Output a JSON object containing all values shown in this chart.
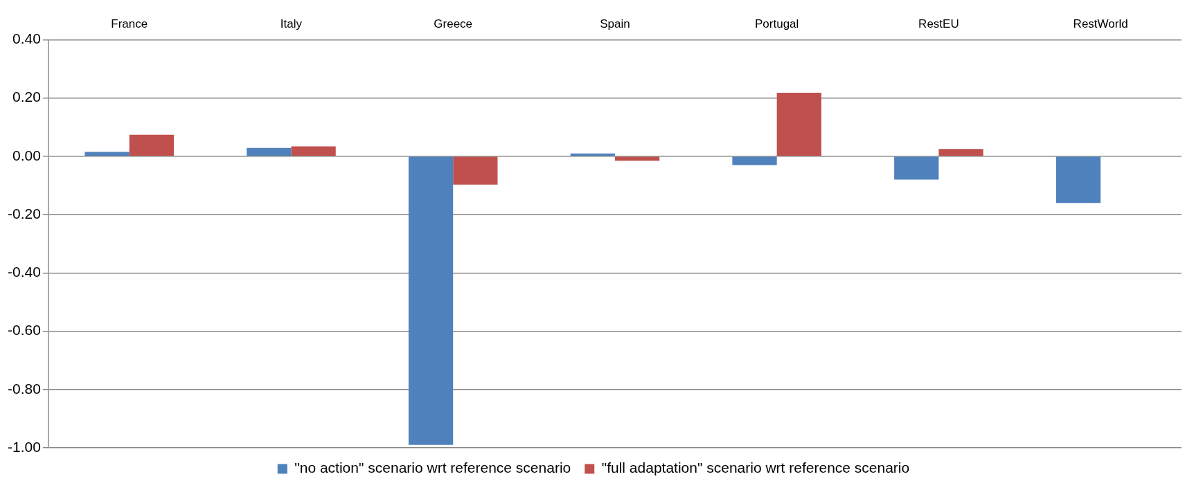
{
  "chart_data": {
    "type": "bar",
    "categories": [
      "France",
      "Italy",
      "Greece",
      "Spain",
      "Portugal",
      "RestEU",
      "RestWorld"
    ],
    "series": [
      {
        "name": "\"no action\" scenario wrt reference scenario",
        "color": "#4f81bd",
        "values": [
          0.015,
          0.029,
          -0.99,
          0.01,
          -0.03,
          -0.08,
          -0.16
        ]
      },
      {
        "name": "\"full adaptation\" scenario wrt reference scenario",
        "color": "#c0504d",
        "values": [
          0.074,
          0.034,
          -0.097,
          -0.015,
          0.218,
          0.025,
          null
        ]
      }
    ],
    "ylim": [
      -1,
      0.4
    ],
    "yticks": [
      {
        "value": -1,
        "label": "-1.00"
      },
      {
        "value": -0.8,
        "label": "-0.80"
      },
      {
        "value": -0.6,
        "label": "-0.60"
      },
      {
        "value": -0.4,
        "label": "-0.40"
      },
      {
        "value": -0.2,
        "label": "-0.20"
      },
      {
        "value": 0,
        "label": "0.00"
      },
      {
        "value": 0.2,
        "label": "0.20"
      },
      {
        "value": 0.4,
        "label": "0.40"
      }
    ],
    "grid": "y",
    "legend": "bottom"
  }
}
